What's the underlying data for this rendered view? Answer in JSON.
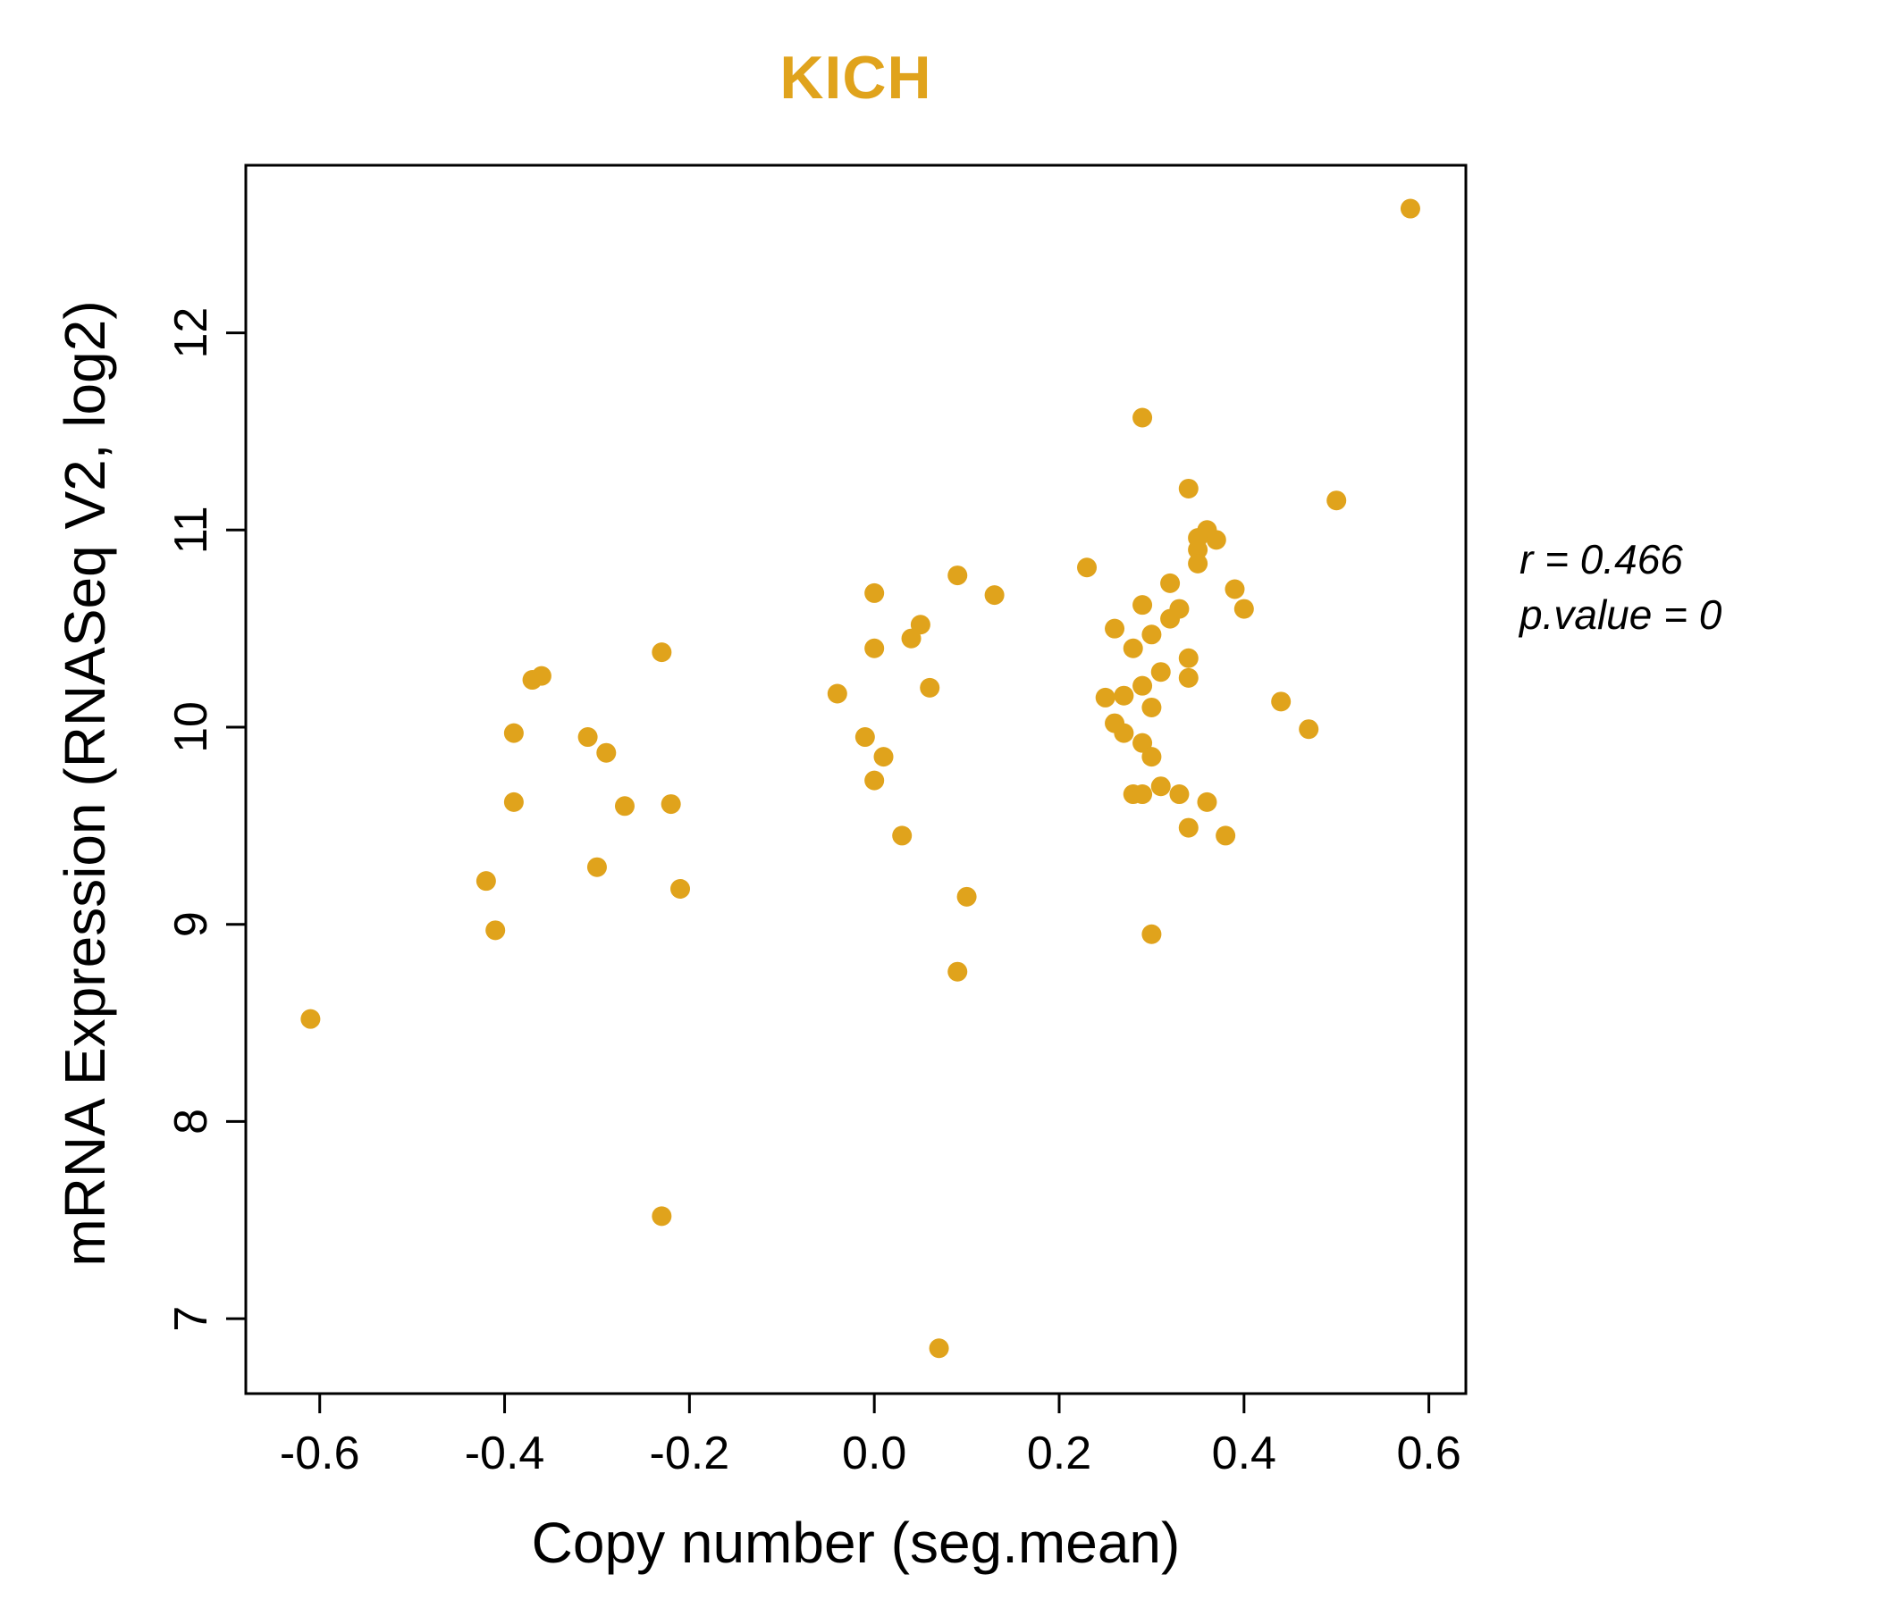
{
  "page": {
    "background_color": "#ffffff"
  },
  "chart_data": {
    "type": "scatter",
    "title": "KICH",
    "title_color": "#E0A31C",
    "point_color": "#E0A31C",
    "point_radius": 11,
    "xlabel": "Copy number (seg.mean)",
    "ylabel": "mRNA Expression (RNASeq V2, log2)",
    "xlim": [
      -0.68,
      0.64
    ],
    "ylim": [
      6.62,
      12.85
    ],
    "grid": false,
    "legend": "none",
    "x_tick_values": [
      -0.6,
      -0.4,
      -0.2,
      0.0,
      0.2,
      0.4,
      0.6
    ],
    "x_tick_labels": [
      "-0.6",
      "-0.4",
      "-0.2",
      "0.0",
      "0.2",
      "0.4",
      "0.6"
    ],
    "y_tick_values": [
      7,
      8,
      9,
      10,
      11,
      12
    ],
    "y_tick_labels": [
      "7",
      "8",
      "9",
      "10",
      "11",
      "12"
    ],
    "annotation": {
      "line1": "r = 0.466",
      "line2": "p.value = 0"
    },
    "points": [
      [
        -0.61,
        8.52
      ],
      [
        -0.42,
        9.22
      ],
      [
        -0.41,
        8.97
      ],
      [
        -0.39,
        9.97
      ],
      [
        -0.39,
        9.62
      ],
      [
        -0.37,
        10.24
      ],
      [
        -0.36,
        10.26
      ],
      [
        -0.31,
        9.95
      ],
      [
        -0.3,
        9.29
      ],
      [
        -0.29,
        9.87
      ],
      [
        -0.27,
        9.6
      ],
      [
        -0.23,
        10.38
      ],
      [
        -0.23,
        7.52
      ],
      [
        -0.22,
        9.61
      ],
      [
        -0.21,
        9.18
      ],
      [
        -0.04,
        10.17
      ],
      [
        0.0,
        10.68
      ],
      [
        0.0,
        10.4
      ],
      [
        -0.01,
        9.95
      ],
      [
        0.0,
        9.73
      ],
      [
        0.01,
        9.85
      ],
      [
        0.03,
        9.45
      ],
      [
        0.04,
        10.45
      ],
      [
        0.05,
        10.52
      ],
      [
        0.06,
        10.2
      ],
      [
        0.07,
        6.85
      ],
      [
        0.09,
        10.77
      ],
      [
        0.09,
        8.76
      ],
      [
        0.1,
        9.14
      ],
      [
        0.13,
        10.67
      ],
      [
        0.23,
        10.81
      ],
      [
        0.25,
        10.15
      ],
      [
        0.26,
        10.5
      ],
      [
        0.26,
        10.02
      ],
      [
        0.27,
        10.16
      ],
      [
        0.27,
        9.97
      ],
      [
        0.28,
        10.4
      ],
      [
        0.28,
        9.66
      ],
      [
        0.29,
        11.57
      ],
      [
        0.29,
        10.62
      ],
      [
        0.29,
        10.21
      ],
      [
        0.29,
        9.92
      ],
      [
        0.29,
        9.66
      ],
      [
        0.3,
        10.47
      ],
      [
        0.3,
        10.1
      ],
      [
        0.3,
        9.85
      ],
      [
        0.3,
        8.95
      ],
      [
        0.31,
        10.28
      ],
      [
        0.31,
        9.7
      ],
      [
        0.32,
        10.73
      ],
      [
        0.32,
        10.55
      ],
      [
        0.33,
        10.6
      ],
      [
        0.33,
        9.66
      ],
      [
        0.34,
        11.21
      ],
      [
        0.34,
        10.35
      ],
      [
        0.34,
        10.25
      ],
      [
        0.34,
        9.49
      ],
      [
        0.35,
        10.96
      ],
      [
        0.35,
        10.9
      ],
      [
        0.35,
        10.83
      ],
      [
        0.36,
        11.0
      ],
      [
        0.36,
        9.62
      ],
      [
        0.37,
        10.95
      ],
      [
        0.38,
        9.45
      ],
      [
        0.39,
        10.7
      ],
      [
        0.4,
        10.6
      ],
      [
        0.44,
        10.13
      ],
      [
        0.47,
        9.99
      ],
      [
        0.5,
        11.15
      ],
      [
        0.58,
        12.63
      ]
    ]
  }
}
